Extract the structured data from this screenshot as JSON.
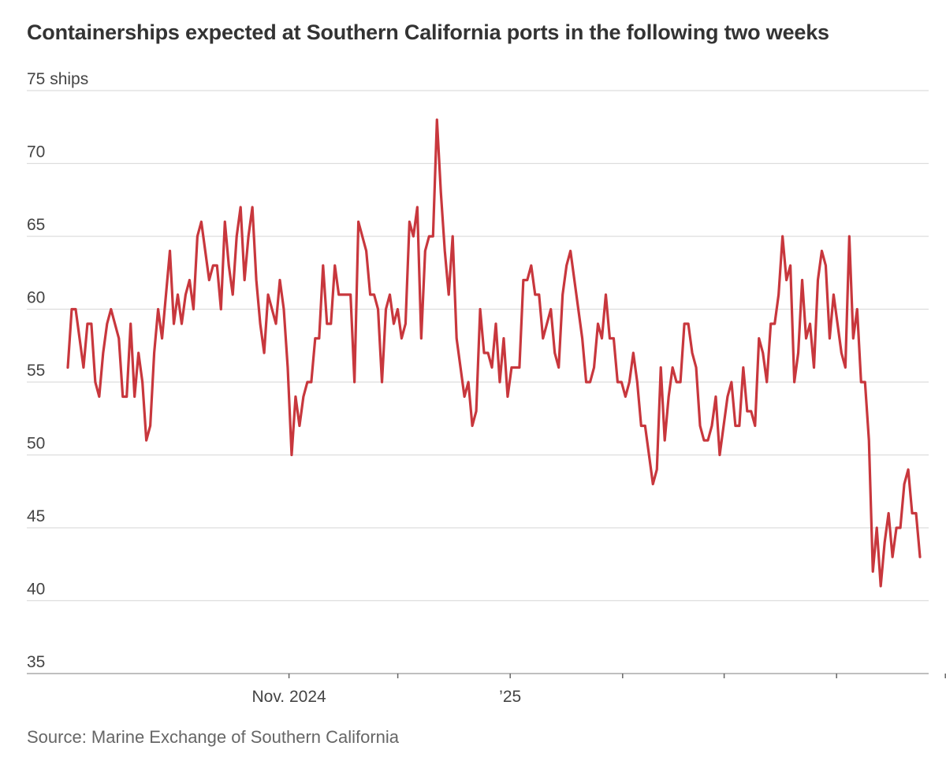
{
  "chart_data": {
    "type": "line",
    "title": "Containerships expected at Southern California ports in the following two weeks",
    "source": "Source: Marine Exchange of Southern California",
    "ylabel": "",
    "y_unit_label": "75 ships",
    "ylim": [
      35,
      75
    ],
    "y_ticks": [
      {
        "value": 75,
        "label": "75 ships"
      },
      {
        "value": 70,
        "label": "70"
      },
      {
        "value": 65,
        "label": "65"
      },
      {
        "value": 60,
        "label": "60"
      },
      {
        "value": 55,
        "label": "55"
      },
      {
        "value": 50,
        "label": "50"
      },
      {
        "value": 45,
        "label": "45"
      },
      {
        "value": 40,
        "label": "40"
      },
      {
        "value": 35,
        "label": "35"
      }
    ],
    "x_start": "2024-09-01",
    "x_end": "2025-04-24",
    "x_ticks": [
      {
        "date": "2024-11-01",
        "label": "Nov. 2024"
      },
      {
        "date": "2024-12-01",
        "label": ""
      },
      {
        "date": "2025-01-01",
        "label": "’25"
      },
      {
        "date": "2025-02-01",
        "label": ""
      },
      {
        "date": "2025-03-01",
        "label": ""
      },
      {
        "date": "2025-04-01",
        "label": ""
      },
      {
        "date": "2025-05-01",
        "label": ""
      }
    ],
    "grid": true,
    "legend": "none",
    "series": [
      {
        "color": "#c8373d",
        "values": [
          56,
          60,
          60,
          58,
          56,
          59,
          59,
          55,
          54,
          57,
          59,
          60,
          59,
          58,
          54,
          54,
          59,
          54,
          57,
          55,
          51,
          52,
          57,
          60,
          58,
          61,
          64,
          59,
          61,
          59,
          61,
          62,
          60,
          65,
          66,
          64,
          62,
          63,
          63,
          60,
          66,
          63,
          61,
          65,
          67,
          62,
          65,
          67,
          62,
          59,
          57,
          61,
          60,
          59,
          62,
          60,
          56,
          50,
          54,
          52,
          54,
          55,
          55,
          58,
          58,
          63,
          59,
          59,
          63,
          61,
          61,
          61,
          61,
          55,
          66,
          65,
          64,
          61,
          61,
          60,
          55,
          60,
          61,
          59,
          60,
          58,
          59,
          66,
          65,
          67,
          58,
          64,
          65,
          65,
          73,
          68,
          64,
          61,
          65,
          58,
          56,
          54,
          55,
          52,
          53,
          60,
          57,
          57,
          56,
          59,
          55,
          58,
          54,
          56,
          56,
          56,
          62,
          62,
          63,
          61,
          61,
          58,
          59,
          60,
          57,
          56,
          61,
          63,
          64,
          62,
          60,
          58,
          55,
          55,
          56,
          59,
          58,
          61,
          58,
          58,
          55,
          55,
          54,
          55,
          57,
          55,
          52,
          52,
          50,
          48,
          49,
          56,
          51,
          54,
          56,
          55,
          55,
          59,
          59,
          57,
          56,
          52,
          51,
          51,
          52,
          54,
          50,
          52,
          54,
          55,
          52,
          52,
          56,
          53,
          53,
          52,
          58,
          57,
          55,
          59,
          59,
          61,
          65,
          62,
          63,
          55,
          57,
          62,
          58,
          59,
          56,
          62,
          64,
          63,
          58,
          61,
          59,
          57,
          56,
          65,
          58,
          60,
          55,
          55,
          51,
          42,
          45,
          41,
          44,
          46,
          43,
          45,
          45,
          48,
          49,
          46,
          46,
          43
        ]
      }
    ]
  }
}
